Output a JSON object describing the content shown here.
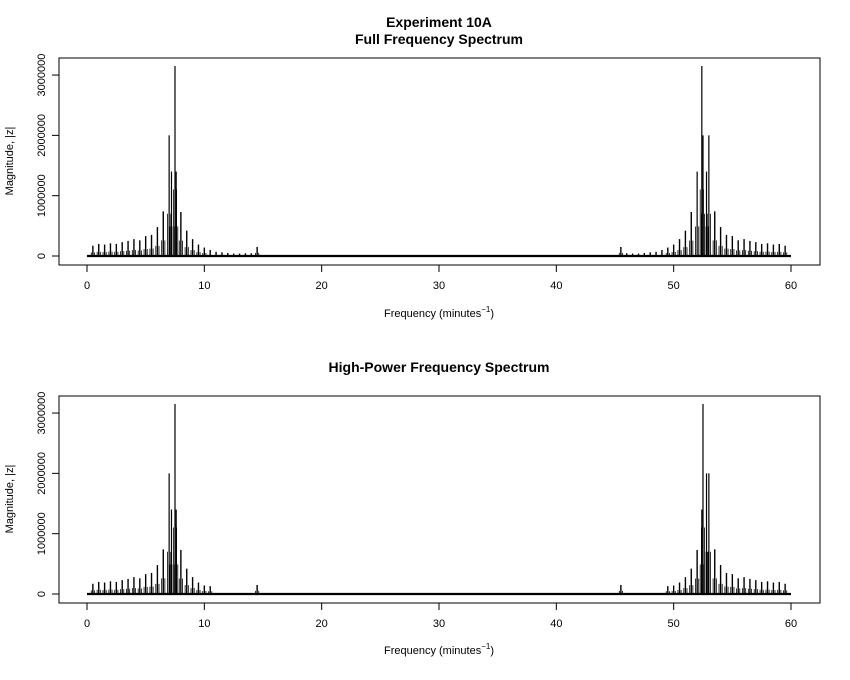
{
  "chart_data": [
    {
      "type": "line",
      "title_line1": "Experiment 10A",
      "title_line2": "Full Frequency Spectrum",
      "xlabel_main": "Frequency (minutes",
      "xlabel_sup": "−1",
      "xlabel_close": ")",
      "ylabel": "Magnitude, |z|",
      "xlim": [
        0,
        60
      ],
      "ylim": [
        0,
        3200000
      ],
      "x_ticks": [
        "0",
        "10",
        "20",
        "30",
        "40",
        "50",
        "60"
      ],
      "y_ticks": [
        "0",
        "1000000",
        "2000000",
        "3000000"
      ],
      "grid": false,
      "legend": "none",
      "series": [
        {
          "x": [
            0.5,
            1.0,
            1.5,
            2.0,
            2.5,
            3.0,
            3.5,
            4.0,
            4.5,
            5.0,
            5.5,
            6.0,
            6.5,
            7.0,
            7.2,
            7.5,
            7.6,
            8.0,
            8.5,
            9.0,
            9.5,
            10.0,
            10.5,
            11.0,
            11.5,
            12.0,
            12.5,
            13.0,
            13.5,
            14.0,
            14.5,
            45.5,
            46.0,
            46.5,
            47.0,
            47.5,
            48.0,
            48.5,
            49.0,
            49.5,
            50.0,
            50.5,
            51.0,
            51.5,
            52.0,
            52.4,
            52.5,
            52.8,
            53.0,
            53.5,
            54.0,
            54.5,
            55.0,
            55.5,
            56.0,
            56.5,
            57.0,
            57.5,
            58.0,
            58.5,
            59.0,
            59.5
          ],
          "values": [
            170000,
            200000,
            190000,
            210000,
            200000,
            230000,
            250000,
            280000,
            260000,
            330000,
            350000,
            480000,
            740000,
            2000000,
            1400000,
            3150000,
            1400000,
            730000,
            420000,
            280000,
            190000,
            140000,
            100000,
            70000,
            60000,
            50000,
            40000,
            40000,
            45000,
            45000,
            150000,
            150000,
            45000,
            40000,
            40000,
            50000,
            60000,
            70000,
            100000,
            140000,
            190000,
            280000,
            420000,
            730000,
            1400000,
            3150000,
            2000000,
            1400000,
            2000000,
            740000,
            480000,
            350000,
            330000,
            260000,
            280000,
            250000,
            230000,
            200000,
            210000,
            190000,
            200000,
            170000
          ]
        }
      ]
    },
    {
      "type": "line",
      "title_line1": "High-Power Frequency Spectrum",
      "xlabel_main": "Frequency (minutes",
      "xlabel_sup": "−1",
      "xlabel_close": ")",
      "ylabel": "Magnitude, |z|",
      "xlim": [
        0,
        60
      ],
      "ylim": [
        0,
        3200000
      ],
      "x_ticks": [
        "0",
        "10",
        "20",
        "30",
        "40",
        "50",
        "60"
      ],
      "y_ticks": [
        "0",
        "1000000",
        "2000000",
        "3000000"
      ],
      "grid": false,
      "legend": "none",
      "series": [
        {
          "x": [
            0.5,
            1.0,
            1.5,
            2.0,
            2.5,
            3.0,
            3.5,
            4.0,
            4.5,
            5.0,
            5.5,
            6.0,
            6.5,
            7.0,
            7.2,
            7.5,
            7.6,
            8.0,
            8.5,
            9.0,
            9.5,
            10.0,
            10.5,
            14.5,
            45.5,
            49.5,
            50.0,
            50.5,
            51.0,
            51.5,
            52.0,
            52.4,
            52.5,
            52.8,
            53.0,
            53.5,
            54.0,
            54.5,
            55.0,
            55.5,
            56.0,
            56.5,
            57.0,
            57.5,
            58.0,
            58.5,
            59.0,
            59.5
          ],
          "values": [
            170000,
            200000,
            190000,
            210000,
            200000,
            230000,
            250000,
            280000,
            260000,
            330000,
            350000,
            480000,
            740000,
            2000000,
            1400000,
            3150000,
            1400000,
            730000,
            420000,
            280000,
            190000,
            140000,
            130000,
            150000,
            150000,
            130000,
            140000,
            190000,
            280000,
            420000,
            730000,
            1400000,
            3150000,
            2000000,
            2000000,
            740000,
            480000,
            350000,
            330000,
            260000,
            280000,
            250000,
            230000,
            200000,
            210000,
            190000,
            200000,
            170000
          ]
        }
      ]
    }
  ]
}
